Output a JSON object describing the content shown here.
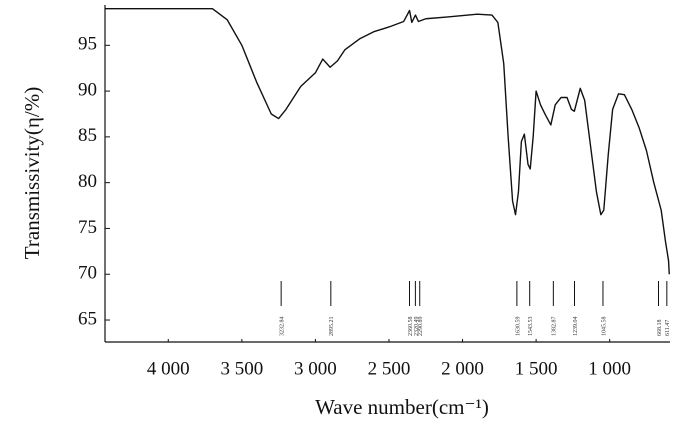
{
  "chart_data": {
    "type": "line",
    "x_label": "Wave number(cm⁻¹)",
    "y_label": "Transmissivity(η/%)",
    "xlim": [
      4430,
      590
    ],
    "ylim": [
      62.6,
      99.4
    ],
    "xticks": [
      {
        "value": 4000,
        "label": "4 000"
      },
      {
        "value": 3500,
        "label": "3 500"
      },
      {
        "value": 3000,
        "label": "3 000"
      },
      {
        "value": 2500,
        "label": "2 500"
      },
      {
        "value": 2000,
        "label": "2 000"
      },
      {
        "value": 1500,
        "label": "1 500"
      },
      {
        "value": 1000,
        "label": "1 000"
      }
    ],
    "yticks": [
      65,
      70,
      75,
      80,
      85,
      90,
      95
    ],
    "color": "#111111",
    "x": [
      4430,
      3700,
      3600,
      3500,
      3400,
      3300,
      3250,
      3200,
      3100,
      3000,
      2950,
      2900,
      2850,
      2800,
      2700,
      2600,
      2500,
      2400,
      2360,
      2345,
      2320,
      2300,
      2250,
      2100,
      1900,
      1800,
      1760,
      1720,
      1690,
      1660,
      1640,
      1620,
      1600,
      1580,
      1555,
      1540,
      1520,
      1500,
      1470,
      1440,
      1400,
      1370,
      1330,
      1290,
      1260,
      1240,
      1200,
      1170,
      1130,
      1090,
      1060,
      1040,
      1010,
      980,
      940,
      900,
      850,
      800,
      750,
      700,
      650,
      620,
      600,
      595
    ],
    "values": [
      99.0,
      99.0,
      97.8,
      95.0,
      91.0,
      87.5,
      87.0,
      88.0,
      90.5,
      92.0,
      93.5,
      92.6,
      93.3,
      94.5,
      95.7,
      96.5,
      97.0,
      97.6,
      98.8,
      97.5,
      98.3,
      97.6,
      97.9,
      98.1,
      98.4,
      98.3,
      97.5,
      93.0,
      85.0,
      78.0,
      76.5,
      79.0,
      84.5,
      85.3,
      82.0,
      81.5,
      85.0,
      90.0,
      88.5,
      87.5,
      86.3,
      88.5,
      89.3,
      89.3,
      88.0,
      87.8,
      90.3,
      89.0,
      84.0,
      79.0,
      76.5,
      77.0,
      83.0,
      88.0,
      89.7,
      89.6,
      88.0,
      86.0,
      83.5,
      80.0,
      77.0,
      73.5,
      71.5,
      70.0
    ],
    "peaks": [
      3232.84,
      2895.21,
      2360.58,
      2320.49,
      2290.89,
      1630.59,
      1543.53,
      1382.87,
      1239.04,
      1045.58,
      668.18,
      611.47
    ]
  }
}
